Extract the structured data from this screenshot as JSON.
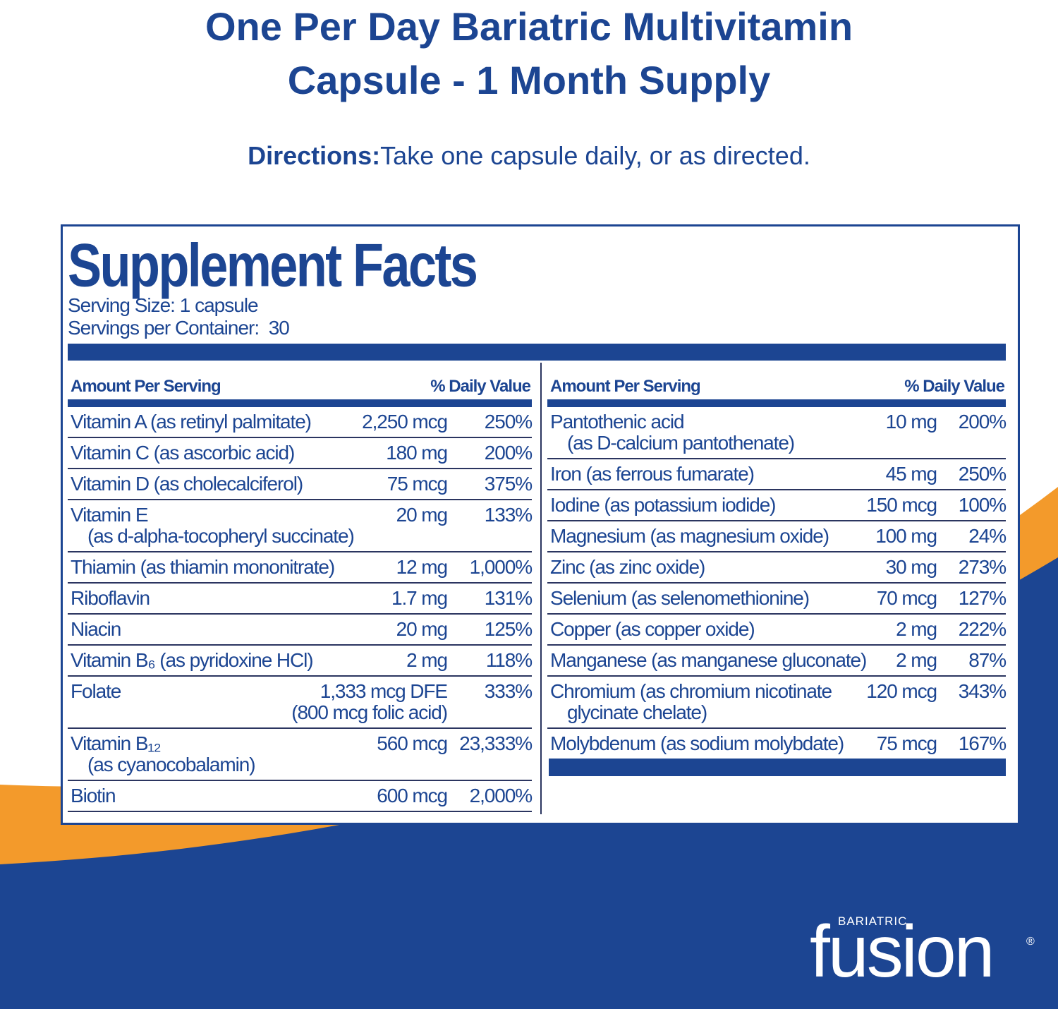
{
  "header": {
    "title": [
      "One Per Day Bariatric Multivitamin",
      "Capsule - 1 Month Supply"
    ]
  },
  "directions": {
    "label": "Directions:",
    "text": "Take one capsule daily, or as directed."
  },
  "facts": {
    "title": "Supplement Facts",
    "serving_size": "Serving Size: 1 capsule",
    "servings_per_container": "Servings per Container:  30",
    "columns": {
      "amount": "Amount Per Serving",
      "dv": "% Daily Value"
    },
    "left_rows": [
      {
        "name": "Vitamin A (as retinyl palmitate)",
        "amount": "2,250 mcg",
        "dv": "250%"
      },
      {
        "name": "Vitamin C (as ascorbic acid)",
        "amount": "180 mg",
        "dv": "200%"
      },
      {
        "name": "Vitamin D (as cholecalciferol)",
        "amount": "75 mcg",
        "dv": "375%"
      },
      {
        "name": "Vitamin E",
        "sub": "(as d-alpha-tocopheryl succinate)",
        "amount": "20 mg",
        "dv": "133%"
      },
      {
        "name": "Thiamin (as thiamin mononitrate)",
        "amount": "12 mg",
        "dv": "1,000%"
      },
      {
        "name": "Riboflavin",
        "amount": "1.7 mg",
        "dv": "131%"
      },
      {
        "name": "Niacin",
        "amount": "20 mg",
        "dv": "125%"
      },
      {
        "name": "Vitamin B₆ (as pyridoxine HCl)",
        "amount": "2 mg",
        "dv": "118%"
      },
      {
        "name": "Folate",
        "amount": "1,333 mcg DFE",
        "amount_note": "(800 mcg folic acid)",
        "dv": "333%"
      },
      {
        "name": "Vitamin B₁₂",
        "sub": "(as cyanocobalamin)",
        "amount": "560 mcg",
        "dv": "23,333%"
      },
      {
        "name": "Biotin",
        "amount": "600 mcg",
        "dv": "2,000%"
      }
    ],
    "right_rows": [
      {
        "name": "Pantothenic acid",
        "sub": "(as D-calcium pantothenate)",
        "amount": "10 mg",
        "dv": "200%"
      },
      {
        "name": "Iron (as ferrous fumarate)",
        "amount": "45 mg",
        "dv": "250%"
      },
      {
        "name": "Iodine (as potassium iodide)",
        "amount": "150 mcg",
        "dv": "100%"
      },
      {
        "name": "Magnesium (as magnesium oxide)",
        "amount": "100 mg",
        "dv": "24%"
      },
      {
        "name": "Zinc (as zinc oxide)",
        "amount": "30 mg",
        "dv": "273%"
      },
      {
        "name": "Selenium (as selenomethionine)",
        "amount": "70 mcg",
        "dv": "127%"
      },
      {
        "name": "Copper (as copper oxide)",
        "amount": "2 mg",
        "dv": "222%"
      },
      {
        "name": "Manganese (as manganese gluconate)",
        "amount": "2 mg",
        "dv": "87%"
      },
      {
        "name": "Chromium (as chromium nicotinate",
        "sub": "glycinate chelate)",
        "amount": "120 mcg",
        "dv": "343%"
      },
      {
        "name": "Molybdenum (as sodium molybdate)",
        "amount": "75 mcg",
        "dv": "167%"
      }
    ]
  },
  "brand": {
    "tagline": "BARIATRIC",
    "name": "fusion",
    "mark": "®"
  }
}
